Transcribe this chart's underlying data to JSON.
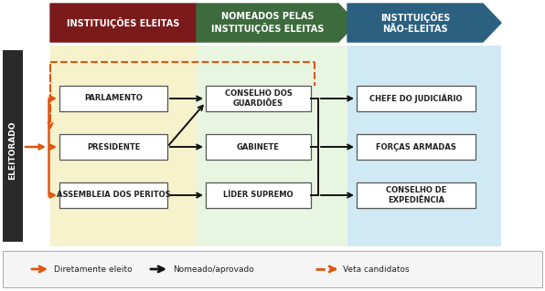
{
  "fig_width": 5.96,
  "fig_height": 3.19,
  "dpi": 100,
  "bg_color": "#ffffff",
  "col1_bg": "#f5f2cc",
  "col2_bg": "#e8f5e0",
  "col3_bg": "#d0eaf5",
  "legend_bg": "#f5f5f5",
  "arrow1_color": "#7a1a1a",
  "arrow2_color": "#3d6b3d",
  "arrow3_color": "#2b6080",
  "orange_color": "#e05510",
  "black_color": "#111111",
  "eleitorado_bg": "#2a2a2a",
  "box_bg": "#ffffff",
  "box_edge": "#555555",
  "col1_header": "INSTITUIÇÕES ELEITAS",
  "col2_header": "NOMEADOS PELAS\nINSTITUIÇÕES ELEITAS",
  "col3_header": "INSTITUIÇÕES\nNÃO-ELEITAS",
  "eleitorado_label": "ELEITORADO",
  "boxes_col1": [
    "PARLAMENTO",
    "PRESIDENTE",
    "ASSEMBLEIA DOS PERITOS"
  ],
  "boxes_col2": [
    "CONSELHO DOS\nGUARDIÕES",
    "GABINETE",
    "LÍDER SUPREMO"
  ],
  "boxes_col3": [
    "CHEFE DO JUDICIÁRIO",
    "FORÇAS ARMADAS",
    "CONSELHO DE\nEXPEDIÊNCIA"
  ],
  "legend_items": [
    {
      "label": "Diretamente eleito",
      "color": "#e05510",
      "style": "solid"
    },
    {
      "label": "Nomeado/aprovado",
      "color": "#111111",
      "style": "solid"
    },
    {
      "label": "Veta candidatos",
      "color": "#e05510",
      "style": "dashed"
    }
  ]
}
